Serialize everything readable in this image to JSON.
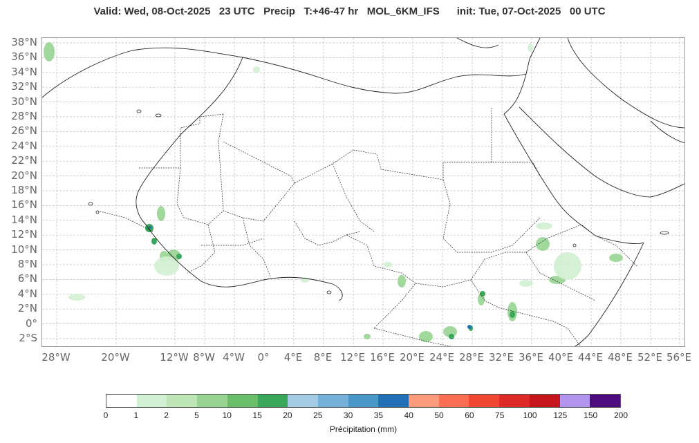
{
  "title": "Valid: Wed, 08-Oct-2025   23 UTC   Precip   T:+46-47 hr   MOL_6KM_IFS      init: Tue, 07-Oct-2025   00 UTC",
  "lat_labels": [
    "38°N",
    "36°N",
    "34°N",
    "32°N",
    "30°N",
    "28°N",
    "26°N",
    "24°N",
    "22°N",
    "20°N",
    "18°N",
    "16°N",
    "14°N",
    "12°N",
    "10°N",
    "8°N",
    "6°N",
    "4°N",
    "2°N",
    "0°",
    "2°S"
  ],
  "lon_labels": [
    "28°W",
    "20°W",
    "12°W",
    "8°W",
    "4°W",
    "0°",
    "4°E",
    "8°E",
    "12°E",
    "16°E",
    "20°E",
    "24°E",
    "28°E",
    "32°E",
    "36°E",
    "40°E",
    "44°E",
    "48°E",
    "52°E",
    "56°E"
  ],
  "colorbar": {
    "title": "Précipitation (mm)",
    "ticks": [
      "0",
      "1",
      "2",
      "5",
      "10",
      "15",
      "20",
      "25",
      "30",
      "35",
      "40",
      "50",
      "60",
      "75",
      "100",
      "125",
      "150",
      "200"
    ],
    "colors": [
      "#ffffff",
      "#d1f0d1",
      "#bde5b5",
      "#97d492",
      "#6bbf6a",
      "#3aa85a",
      "#a3cbe3",
      "#74b0d8",
      "#4a97c9",
      "#2170b5",
      "#fc9a7c",
      "#fb6e51",
      "#f24733",
      "#de2a26",
      "#c6151c",
      "#b195ee",
      "#4e0d7e"
    ]
  }
}
